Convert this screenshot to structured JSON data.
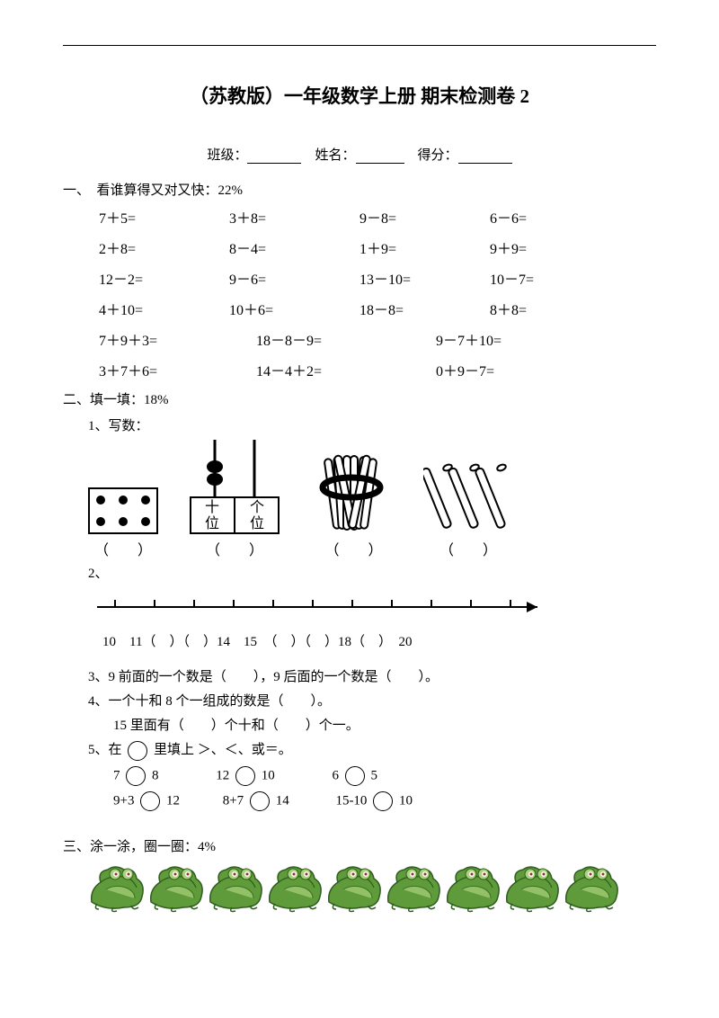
{
  "title": "（苏教版）一年级数学上册  期末检测卷 2",
  "meta": {
    "class": "班级：",
    "name": "姓名：",
    "score": "得分："
  },
  "s1": {
    "head": "一、　看谁算得又对又快：22%",
    "rows4": [
      [
        "7＋5=",
        "3＋8=",
        "9－8=",
        "6－6="
      ],
      [
        "2＋8=",
        "8－4=",
        "1＋9=",
        "9＋9="
      ],
      [
        "12－2=",
        "9－6=",
        "13－10=",
        "10－7="
      ],
      [
        "4＋10=",
        "10＋6=",
        "18－8=",
        "8＋8="
      ]
    ],
    "rows3": [
      [
        "7＋9＋3=",
        "18－8－9=",
        "9－7＋10="
      ],
      [
        "3＋7＋6=",
        "14－4＋2=",
        "0＋9－7="
      ]
    ]
  },
  "s2": {
    "head": "二、填一填：18%",
    "q1": "1、写数：",
    "q1_paren": [
      "（　　）",
      "（　　）",
      "（　　）",
      "（　　）"
    ],
    "abacus_labels": {
      "shi": "十",
      "ge": "个",
      "wei": "位",
      "wei2": "位"
    },
    "q2": "2、",
    "numline": "10　11（　）（　）14　15　（　）（　）18（　）　20",
    "q3": "3、9 前面的一个数是（　　），9 后面的一个数是（　　）。",
    "q4a": "4、一个十和 8 个一组成的数是（　　）。",
    "q4b": "15 里面有（　　）个十和（　　）个一。",
    "q5": "5、在",
    "q5_tail": "里填上 ＞、＜、或＝。",
    "q5_row1": [
      [
        "7",
        "8"
      ],
      [
        "12",
        "10"
      ],
      [
        "6",
        "5"
      ]
    ],
    "q5_row2": [
      [
        "9+3",
        "12"
      ],
      [
        "8+7",
        "14"
      ],
      [
        "15-10",
        "10"
      ]
    ]
  },
  "s3": {
    "head": "三、涂一涂，圈一圈：4%",
    "frog_count": 9,
    "frog_colors": {
      "body": "#5f9b3a",
      "dark": "#2f5d1f",
      "light": "#a9d27a",
      "eye": "#ffffff",
      "pupil": "#9a2b2b",
      "bg_arc": "#3a7030"
    }
  },
  "colors": {
    "text": "#000000",
    "bg": "#ffffff",
    "line": "#000000"
  }
}
